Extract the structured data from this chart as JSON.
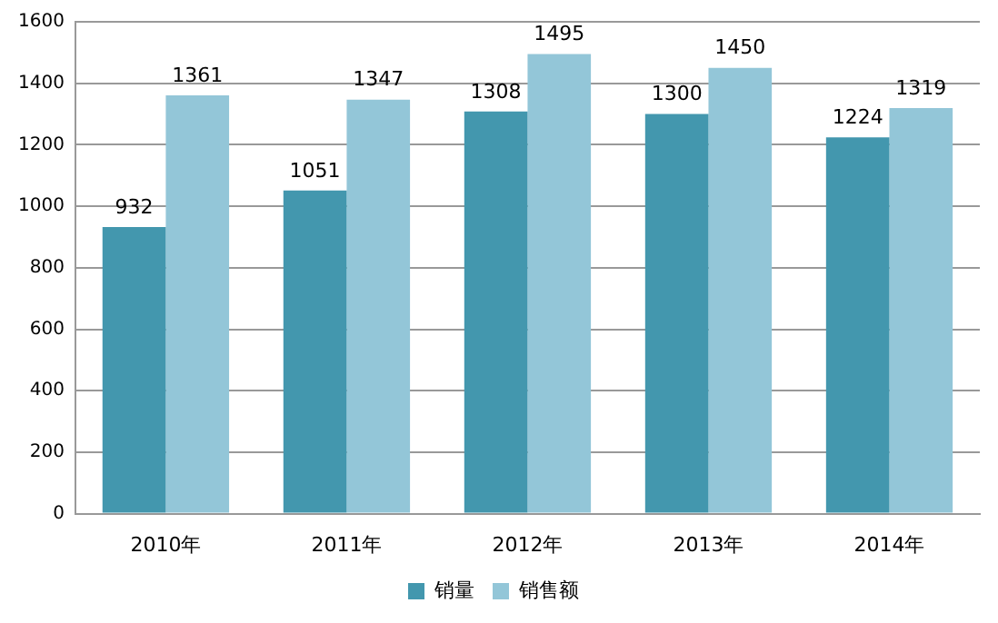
{
  "chart_data": {
    "type": "bar",
    "categories": [
      "2010年",
      "2011年",
      "2012年",
      "2013年",
      "2014年"
    ],
    "series": [
      {
        "name": "销量",
        "color": "#4397ae",
        "values": [
          932,
          1051,
          1308,
          1300,
          1224
        ]
      },
      {
        "name": "销售额",
        "color": "#93c6d8",
        "values": [
          1361,
          1347,
          1495,
          1450,
          1319
        ]
      }
    ],
    "ylim": [
      0,
      1600
    ],
    "yticks": [
      0,
      200,
      400,
      600,
      800,
      1000,
      1200,
      1400,
      1600
    ],
    "grid": "y",
    "legend": "bottom",
    "data_labels": true
  }
}
